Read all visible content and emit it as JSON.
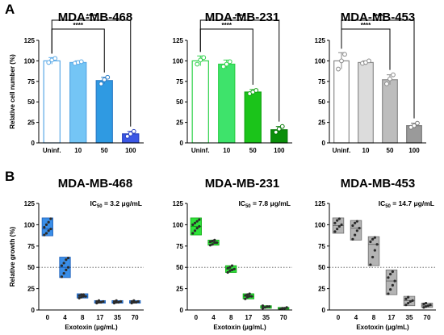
{
  "panels": {
    "A": "A",
    "B": "B"
  },
  "chart_data": [
    {
      "type": "bar",
      "title": "MDA-MB-468",
      "ylabel": "Relative cell number (%)",
      "xlabel": "",
      "categories": [
        "Uninf.",
        "10",
        "50",
        "100"
      ],
      "values": [
        100,
        98,
        76,
        11
      ],
      "errors": [
        4,
        2,
        4,
        3
      ],
      "points": [
        [
          98,
          101,
          103
        ],
        [
          97,
          98,
          99
        ],
        [
          72,
          77,
          80
        ],
        [
          8,
          11,
          14
        ]
      ],
      "colors": [
        "#ffffff",
        "#74c5f5",
        "#2f9ae2",
        "#3b57e6"
      ],
      "edge_colors": [
        "#5aa9e6",
        "#5aa9e6",
        "#2f7fc8",
        "#2a42c0"
      ],
      "ylim": [
        0,
        125
      ],
      "yticks": [
        0,
        25,
        50,
        75,
        100,
        125
      ],
      "significance": [
        {
          "from": 0,
          "to": 2,
          "label": "****"
        },
        {
          "from": 0,
          "to": 3,
          "label": "****"
        }
      ],
      "grid": false
    },
    {
      "type": "bar",
      "title": "MDA-MB-231",
      "ylabel": "",
      "xlabel": "",
      "categories": [
        "Uninf.",
        "10",
        "50",
        "100"
      ],
      "values": [
        100,
        96,
        62,
        16
      ],
      "errors": [
        6,
        5,
        3,
        4
      ],
      "points": [
        [
          96,
          101,
          104
        ],
        [
          93,
          96,
          99
        ],
        [
          60,
          62,
          64
        ],
        [
          13,
          17,
          20
        ]
      ],
      "colors": [
        "#ffffff",
        "#3ee36b",
        "#1bc41a",
        "#0a8f0a"
      ],
      "edge_colors": [
        "#2fd14a",
        "#2fd14a",
        "#13a313",
        "#0a7a0a"
      ],
      "ylim": [
        0,
        125
      ],
      "yticks": [
        0,
        25,
        50,
        75,
        100,
        125
      ],
      "significance": [
        {
          "from": 0,
          "to": 2,
          "label": "****"
        },
        {
          "from": 0,
          "to": 3,
          "label": "****"
        }
      ],
      "grid": false
    },
    {
      "type": "bar",
      "title": "MDA-MB-453",
      "ylabel": "",
      "xlabel": "",
      "categories": [
        "Uninf.",
        "10",
        "50",
        "100"
      ],
      "values": [
        100,
        98,
        77,
        21
      ],
      "errors": [
        10,
        2,
        6,
        3
      ],
      "points": [
        [
          90,
          100,
          108
        ],
        [
          97,
          98,
          100
        ],
        [
          72,
          78,
          83
        ],
        [
          19,
          21,
          24
        ]
      ],
      "colors": [
        "#ffffff",
        "#dcdcdc",
        "#bdbdbd",
        "#9a9a9a"
      ],
      "edge_colors": [
        "#8a8a8a",
        "#8a8a8a",
        "#8a8a8a",
        "#7a7a7a"
      ],
      "ylim": [
        0,
        125
      ],
      "yticks": [
        0,
        25,
        50,
        75,
        100,
        125
      ],
      "significance": [
        {
          "from": 0,
          "to": 2,
          "label": "****"
        },
        {
          "from": 0,
          "to": 3,
          "label": "****"
        }
      ],
      "grid": false
    },
    {
      "type": "box",
      "title": "MDA-MB-468",
      "ylabel": "Relative growth (%)",
      "xlabel": "Exotoxin (μg/mL)",
      "categories": [
        "0",
        "4",
        "8",
        "17",
        "35",
        "70"
      ],
      "boxes": [
        {
          "min": 87,
          "max": 108,
          "median": 95,
          "points": [
            88,
            90,
            93,
            95,
            97,
            100,
            103,
            107
          ]
        },
        {
          "min": 38,
          "max": 62,
          "median": 50,
          "points": [
            39,
            43,
            47,
            50,
            52,
            55,
            59,
            61
          ]
        },
        {
          "min": 14,
          "max": 19,
          "median": 16,
          "points": [
            14,
            15,
            16,
            16,
            17,
            18,
            18
          ]
        },
        {
          "min": 8,
          "max": 11,
          "median": 9,
          "points": [
            8,
            9,
            9,
            10,
            10,
            11
          ]
        },
        {
          "min": 8,
          "max": 11,
          "median": 9,
          "points": [
            8,
            9,
            9,
            10,
            10,
            11
          ]
        },
        {
          "min": 8,
          "max": 11,
          "median": 9,
          "points": [
            8,
            9,
            9,
            10,
            10,
            11
          ]
        }
      ],
      "color": "#3a8ee8",
      "edge_color": "#1d5fb8",
      "ylim": [
        0,
        125
      ],
      "yticks": [
        0,
        25,
        50,
        75,
        100,
        125
      ],
      "reference_line": 50,
      "ic50_label": "IC",
      "ic50_sub": "50",
      "ic50_value": " = 3.2 μg/mL",
      "grid": false
    },
    {
      "type": "box",
      "title": "MDA-MB-231",
      "ylabel": "",
      "xlabel": "Exotoxin (μg/mL)",
      "categories": [
        "0",
        "4",
        "8",
        "17",
        "35",
        "70"
      ],
      "boxes": [
        {
          "min": 88,
          "max": 108,
          "median": 98,
          "points": [
            90,
            93,
            96,
            98,
            100,
            102,
            104,
            106
          ]
        },
        {
          "min": 76,
          "max": 82,
          "median": 79,
          "points": [
            76,
            77,
            79,
            79,
            80,
            81,
            82
          ]
        },
        {
          "min": 44,
          "max": 52,
          "median": 48,
          "points": [
            44,
            46,
            47,
            48,
            49,
            50,
            52
          ]
        },
        {
          "min": 13,
          "max": 19,
          "median": 16,
          "points": [
            13,
            15,
            16,
            16,
            17,
            18,
            19
          ]
        },
        {
          "min": 2,
          "max": 5,
          "median": 4,
          "points": [
            2,
            3,
            4,
            4,
            5
          ]
        },
        {
          "min": 1,
          "max": 3,
          "median": 2,
          "points": [
            1,
            2,
            2,
            3
          ]
        }
      ],
      "color": "#2ee33a",
      "edge_color": "#12a816",
      "ylim": [
        0,
        125
      ],
      "yticks": [
        0,
        25,
        50,
        75,
        100,
        125
      ],
      "reference_line": 50,
      "ic50_label": "IC",
      "ic50_sub": "50",
      "ic50_value": " = 7.8 μg/mL",
      "grid": false
    },
    {
      "type": "box",
      "title": "MDA-MB-453",
      "ylabel": "",
      "xlabel": "Exotoxin (μg/mL)",
      "categories": [
        "0",
        "4",
        "8",
        "17",
        "35",
        "70"
      ],
      "boxes": [
        {
          "min": 90,
          "max": 108,
          "median": 99,
          "points": [
            92,
            95,
            98,
            100,
            102,
            105,
            107
          ]
        },
        {
          "min": 82,
          "max": 105,
          "median": 96,
          "points": [
            83,
            88,
            93,
            96,
            99,
            102,
            104
          ]
        },
        {
          "min": 52,
          "max": 86,
          "median": 77,
          "points": [
            53,
            62,
            70,
            77,
            80,
            83,
            85
          ]
        },
        {
          "min": 18,
          "max": 47,
          "median": 34,
          "points": [
            19,
            24,
            29,
            34,
            38,
            42,
            45
          ]
        },
        {
          "min": 5,
          "max": 16,
          "median": 11,
          "points": [
            6,
            8,
            10,
            11,
            13,
            15
          ]
        },
        {
          "min": 3,
          "max": 8,
          "median": 5,
          "points": [
            3,
            4,
            5,
            6,
            7,
            8
          ]
        }
      ],
      "color": "#b4b4b4",
      "edge_color": "#6e6e6e",
      "ylim": [
        0,
        125
      ],
      "yticks": [
        0,
        25,
        50,
        75,
        100,
        125
      ],
      "reference_line": 50,
      "ic50_label": "IC",
      "ic50_sub": "50",
      "ic50_value": " = 14.7 μg/mL",
      "grid": false
    }
  ]
}
